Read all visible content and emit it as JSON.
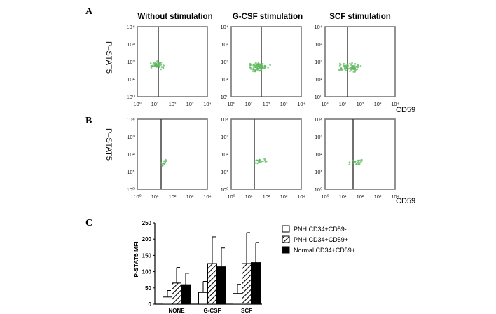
{
  "figure": {
    "panels": {
      "a": "A",
      "b": "B",
      "c": "C"
    },
    "column_titles": [
      "Without stimulation",
      "G-CSF stimulation",
      "SCF stimulation"
    ],
    "y_axis_label": "P–STAT5",
    "x_axis_label": "CD59",
    "ticks": [
      "10⁰",
      "10¹",
      "10²",
      "10³",
      "10⁴"
    ],
    "colors": {
      "dots": "#5cb85c",
      "frame": "#777777",
      "gate": "#333333"
    }
  },
  "chart_data": {
    "type": "bar",
    "categories": [
      "NONE",
      "G-CSF",
      "SCF"
    ],
    "series": [
      {
        "name": "PNH CD34+CD59-",
        "values": [
          22,
          36,
          33
        ],
        "errors": [
          20,
          34,
          28
        ],
        "fill": "white"
      },
      {
        "name": "PNH CD34+CD59+",
        "values": [
          65,
          125,
          125
        ],
        "errors": [
          48,
          82,
          95
        ],
        "fill": "hatch"
      },
      {
        "name": "Normal CD34+CD59+",
        "values": [
          60,
          115,
          128
        ],
        "errors": [
          35,
          58,
          62
        ],
        "fill": "black"
      }
    ],
    "ylabel": "P-STAT5  MFI",
    "yticks": [
      "0",
      "50",
      "100",
      "150",
      "200",
      "250"
    ],
    "ylim": [
      0,
      250
    ],
    "legend_position": "right"
  }
}
